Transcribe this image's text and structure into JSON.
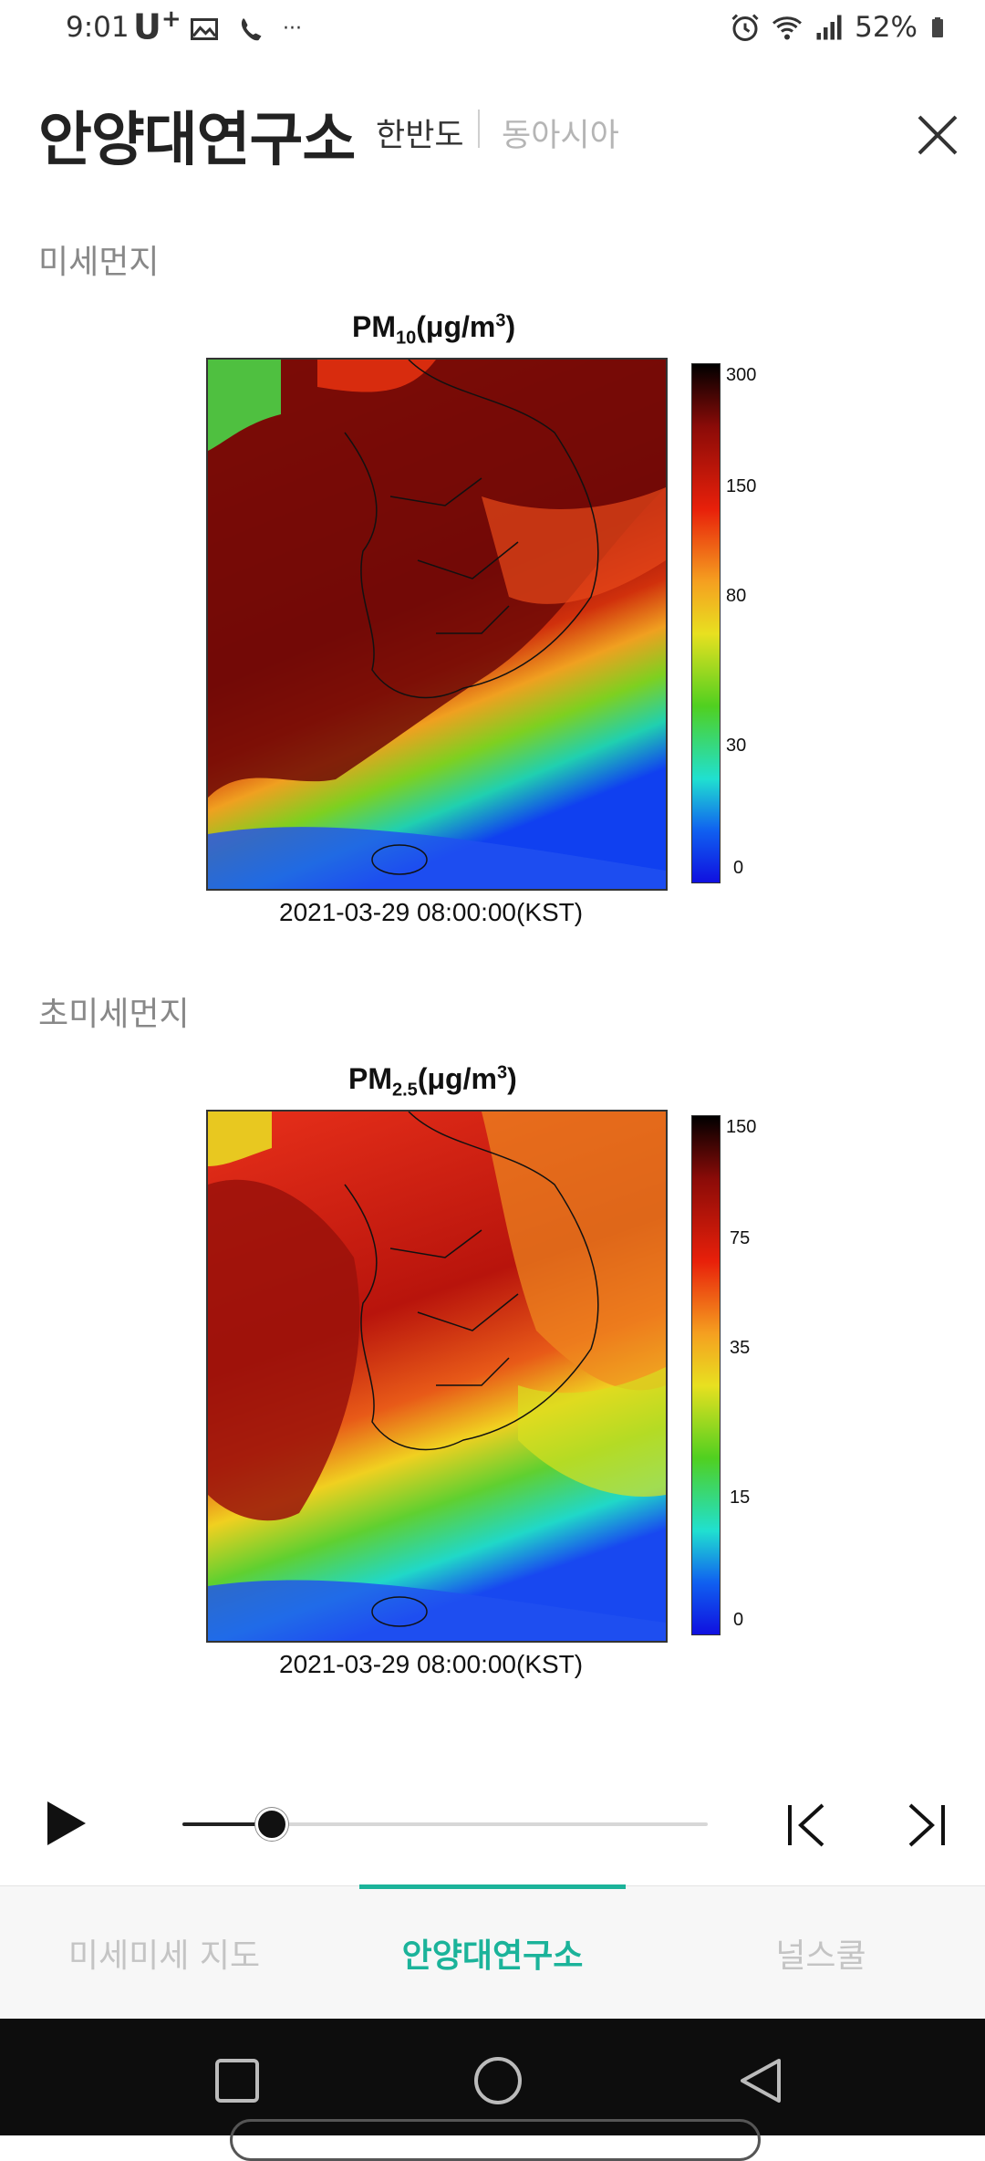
{
  "status_bar": {
    "time": "9:01",
    "carrier": "U",
    "carrier_sup": "+",
    "dots": "···",
    "battery": "52%"
  },
  "header": {
    "title": "안양대연구소",
    "tab_korea": "한반도",
    "tab_asia": "동아시아"
  },
  "pm10": {
    "section_label": "미세먼지",
    "title_main": "PM",
    "title_sub": "10",
    "title_unit": "(μg/m",
    "title_sup": "3",
    "title_close": ")",
    "timestamp": "2021-03-29 08:00:00(KST)",
    "colorbar_ticks": [
      "300",
      "150",
      "80",
      "30",
      "0"
    ]
  },
  "pm25": {
    "section_label": "초미세먼지",
    "title_main": "PM",
    "title_sub": "2.5",
    "title_unit": "(μg/m",
    "title_sup": "3",
    "title_close": ")",
    "timestamp": "2021-03-29 08:00:00(KST)",
    "colorbar_ticks": [
      "150",
      "75",
      "35",
      "15",
      "0"
    ]
  },
  "player": {
    "progress": 0.17
  },
  "bottom_nav": {
    "items": [
      "미세미세 지도",
      "안양대연구소",
      "널스쿨"
    ],
    "active_index": 1
  },
  "colors": {
    "accent": "#1bb39a"
  }
}
